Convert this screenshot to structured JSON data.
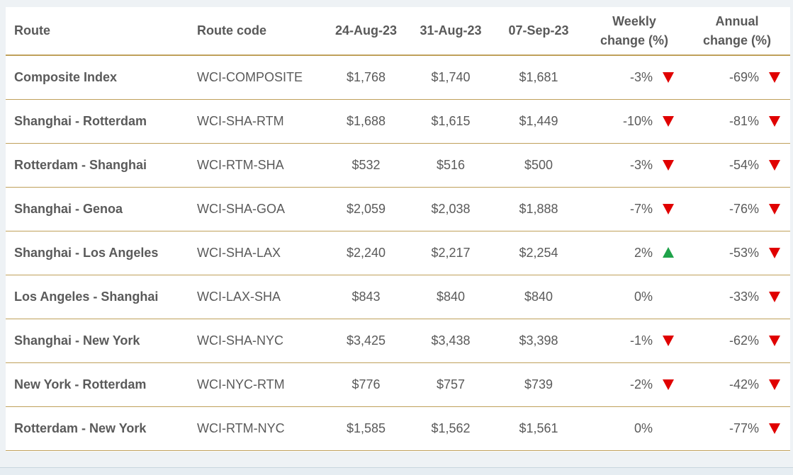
{
  "table": {
    "headers": {
      "route": "Route",
      "code": "Route code",
      "date1": "24-Aug-23",
      "date2": "31-Aug-23",
      "date3": "07-Sep-23",
      "weekly_line1": "Weekly",
      "weekly_line2": "change (%)",
      "annual_line1": "Annual",
      "annual_line2": "change (%)"
    },
    "rows": [
      {
        "route": "Composite Index",
        "code": "WCI-COMPOSITE",
        "d1": "$1,768",
        "d2": "$1,740",
        "d3": "$1,681",
        "weekly": "-3%",
        "weekly_dir": "down",
        "annual": "-69%",
        "annual_dir": "down"
      },
      {
        "route": "Shanghai - Rotterdam",
        "code": "WCI-SHA-RTM",
        "d1": "$1,688",
        "d2": "$1,615",
        "d3": "$1,449",
        "weekly": "-10%",
        "weekly_dir": "down",
        "annual": "-81%",
        "annual_dir": "down"
      },
      {
        "route": "Rotterdam - Shanghai",
        "code": "WCI-RTM-SHA",
        "d1": "$532",
        "d2": "$516",
        "d3": "$500",
        "weekly": "-3%",
        "weekly_dir": "down",
        "annual": "-54%",
        "annual_dir": "down"
      },
      {
        "route": "Shanghai - Genoa",
        "code": "WCI-SHA-GOA",
        "d1": "$2,059",
        "d2": "$2,038",
        "d3": "$1,888",
        "weekly": "-7%",
        "weekly_dir": "down",
        "annual": "-76%",
        "annual_dir": "down"
      },
      {
        "route": "Shanghai - Los Angeles",
        "code": "WCI-SHA-LAX",
        "d1": "$2,240",
        "d2": "$2,217",
        "d3": "$2,254",
        "weekly": "2%",
        "weekly_dir": "up",
        "annual": "-53%",
        "annual_dir": "down"
      },
      {
        "route": "Los Angeles - Shanghai",
        "code": "WCI-LAX-SHA",
        "d1": "$843",
        "d2": "$840",
        "d3": "$840",
        "weekly": "0%",
        "weekly_dir": "none",
        "annual": "-33%",
        "annual_dir": "down"
      },
      {
        "route": "Shanghai - New York",
        "code": "WCI-SHA-NYC",
        "d1": "$3,425",
        "d2": "$3,438",
        "d3": "$3,398",
        "weekly": "-1%",
        "weekly_dir": "down",
        "annual": "-62%",
        "annual_dir": "down"
      },
      {
        "route": "New York - Rotterdam",
        "code": "WCI-NYC-RTM",
        "d1": "$776",
        "d2": "$757",
        "d3": "$739",
        "weekly": "-2%",
        "weekly_dir": "down",
        "annual": "-42%",
        "annual_dir": "down"
      },
      {
        "route": "Rotterdam - New York",
        "code": "WCI-RTM-NYC",
        "d1": "$1,585",
        "d2": "$1,562",
        "d3": "$1,561",
        "weekly": "0%",
        "weekly_dir": "none",
        "annual": "-77%",
        "annual_dir": "down"
      }
    ]
  },
  "colors": {
    "down": "#e00000",
    "up": "#1fa34a",
    "rule": "#bfa05a",
    "text": "#5a5a5a"
  },
  "icons": {
    "down": "down-triangle-icon",
    "up": "up-triangle-icon"
  }
}
